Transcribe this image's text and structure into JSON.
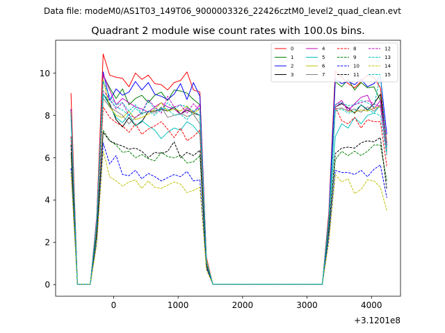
{
  "chart_data": {
    "type": "line",
    "supertitle": "Data file: modeM0/AS1T03_149T06_9000003326_22426cztM0_level2_quad_clean.evt",
    "title": "Quadrant 2 module wise count rates with 100.0s bins.",
    "xlabel": "",
    "ylabel": "",
    "offset_text": "+3.1201e8",
    "xlim": [
      -900,
      4450
    ],
    "ylim": [
      -0.55,
      11.55
    ],
    "xticks": [
      0,
      1000,
      2000,
      3000,
      4000
    ],
    "yticks": [
      0,
      2,
      4,
      6,
      8,
      10
    ],
    "grid": false,
    "legend_position": "top-right",
    "legend_columns": 4,
    "x": [
      -662,
      -562,
      -462,
      -362,
      -262,
      -162,
      -62,
      38,
      138,
      238,
      338,
      438,
      538,
      638,
      738,
      838,
      938,
      1038,
      1138,
      1238,
      1338,
      1438,
      1538,
      1638,
      1738,
      1838,
      1938,
      2038,
      2138,
      2238,
      2338,
      2438,
      2538,
      2638,
      2738,
      2838,
      2938,
      3038,
      3138,
      3238,
      3338,
      3438,
      3538,
      3638,
      3738,
      3838,
      3938,
      4038,
      4138,
      4238
    ],
    "series": [
      {
        "name": "0",
        "color": "#ff0000",
        "dashed": false,
        "values": [
          9.05,
          0.02,
          0.02,
          0.02,
          3.2,
          10.9,
          9.9,
          9.8,
          9.75,
          9.35,
          10.0,
          9.7,
          9.9,
          9.5,
          9.45,
          9.2,
          9.55,
          9.65,
          10.05,
          9.2,
          9.1,
          1.3,
          0.02,
          0.02,
          0.02,
          0.02,
          0.02,
          0.02,
          0.02,
          0.02,
          0.02,
          0.02,
          0.02,
          0.02,
          0.02,
          0.02,
          0.02,
          0.02,
          0.02,
          0.02,
          3.4,
          10.1,
          9.8,
          9.5,
          9.3,
          9.6,
          9.9,
          9.8,
          9.3,
          6.7
        ]
      },
      {
        "name": "1",
        "color": "#008000",
        "dashed": false,
        "values": [
          8.3,
          0.02,
          0.02,
          0.02,
          3.0,
          9.9,
          9.3,
          8.8,
          9.25,
          8.5,
          8.8,
          8.95,
          8.6,
          8.95,
          9.1,
          8.7,
          9.2,
          9.15,
          9.05,
          8.75,
          8.5,
          1.2,
          0.02,
          0.02,
          0.02,
          0.02,
          0.02,
          0.02,
          0.02,
          0.02,
          0.02,
          0.02,
          0.02,
          0.02,
          0.02,
          0.02,
          0.02,
          0.02,
          0.02,
          0.02,
          3.2,
          9.6,
          9.35,
          9.7,
          9.2,
          9.55,
          9.3,
          9.35,
          8.7,
          6.5
        ]
      },
      {
        "name": "2",
        "color": "#0000ff",
        "dashed": false,
        "values": [
          8.3,
          0.02,
          0.02,
          0.02,
          3.1,
          10.05,
          8.7,
          9.25,
          8.95,
          9.1,
          9.6,
          9.2,
          9.55,
          9.0,
          8.9,
          8.75,
          9.0,
          9.5,
          8.75,
          9.55,
          8.9,
          1.2,
          0.02,
          0.02,
          0.02,
          0.02,
          0.02,
          0.02,
          0.02,
          0.02,
          0.02,
          0.02,
          0.02,
          0.02,
          0.02,
          0.02,
          0.02,
          0.02,
          0.02,
          0.02,
          3.2,
          9.7,
          9.5,
          9.6,
          9.45,
          9.7,
          9.35,
          9.5,
          9.85,
          7.1
        ]
      },
      {
        "name": "3",
        "color": "#000000",
        "dashed": false,
        "values": [
          8.2,
          0.02,
          0.02,
          0.02,
          2.9,
          9.0,
          8.55,
          7.8,
          7.45,
          7.9,
          7.5,
          7.7,
          8.2,
          8.2,
          8.3,
          8.2,
          8.4,
          8.05,
          8.25,
          8.1,
          8.0,
          1.1,
          0.02,
          0.02,
          0.02,
          0.02,
          0.02,
          0.02,
          0.02,
          0.02,
          0.02,
          0.02,
          0.02,
          0.02,
          0.02,
          0.02,
          0.02,
          0.02,
          0.02,
          0.02,
          3.0,
          8.4,
          8.55,
          8.35,
          8.1,
          8.5,
          8.25,
          8.55,
          9.0,
          6.6
        ]
      },
      {
        "name": "4",
        "color": "#bf00bf",
        "dashed": false,
        "values": [
          8.3,
          0.02,
          0.02,
          0.02,
          3.0,
          9.95,
          9.2,
          8.5,
          8.8,
          8.6,
          8.4,
          8.3,
          8.15,
          8.4,
          8.6,
          8.4,
          8.3,
          8.05,
          8.35,
          8.15,
          8.5,
          1.2,
          0.02,
          0.02,
          0.02,
          0.02,
          0.02,
          0.02,
          0.02,
          0.02,
          0.02,
          0.02,
          0.02,
          0.02,
          0.02,
          0.02,
          0.02,
          0.02,
          0.02,
          0.02,
          3.1,
          8.5,
          8.7,
          8.2,
          8.55,
          8.85,
          8.95,
          8.3,
          8.7,
          6.6
        ]
      },
      {
        "name": "5",
        "color": "#00bfbf",
        "dashed": false,
        "values": [
          7.0,
          0.02,
          0.02,
          0.02,
          2.8,
          9.0,
          8.45,
          7.9,
          7.65,
          8.05,
          7.5,
          7.75,
          7.5,
          7.3,
          6.9,
          7.2,
          7.4,
          7.3,
          7.7,
          7.5,
          7.1,
          1.1,
          0.02,
          0.02,
          0.02,
          0.02,
          0.02,
          0.02,
          0.02,
          0.02,
          0.02,
          0.02,
          0.02,
          0.02,
          0.02,
          0.02,
          0.02,
          0.02,
          0.02,
          0.02,
          3.0,
          7.0,
          7.6,
          7.4,
          7.9,
          7.6,
          8.0,
          8.1,
          8.5,
          6.5
        ]
      },
      {
        "name": "6",
        "color": "#bfbf00",
        "dashed": false,
        "values": [
          8.1,
          0.02,
          0.02,
          0.02,
          3.0,
          9.7,
          8.4,
          8.0,
          7.9,
          8.2,
          7.8,
          7.9,
          8.05,
          8.3,
          8.6,
          8.2,
          8.3,
          8.2,
          8.45,
          8.1,
          8.3,
          1.2,
          0.02,
          0.02,
          0.02,
          0.02,
          0.02,
          0.02,
          0.02,
          0.02,
          0.02,
          0.02,
          0.02,
          0.02,
          0.02,
          0.02,
          0.02,
          0.02,
          0.02,
          0.02,
          3.1,
          8.3,
          8.35,
          8.2,
          8.15,
          8.25,
          8.2,
          8.35,
          8.4,
          6.4
        ]
      },
      {
        "name": "7",
        "color": "#808080",
        "dashed": false,
        "values": [
          8.2,
          0.02,
          0.02,
          0.02,
          3.0,
          8.8,
          8.4,
          8.2,
          8.0,
          7.6,
          7.9,
          8.1,
          8.2,
          8.1,
          8.4,
          7.9,
          8.0,
          8.1,
          7.95,
          8.05,
          7.6,
          1.1,
          0.02,
          0.02,
          0.02,
          0.02,
          0.02,
          0.02,
          0.02,
          0.02,
          0.02,
          0.02,
          0.02,
          0.02,
          0.02,
          0.02,
          0.02,
          0.02,
          0.02,
          0.02,
          3.0,
          8.3,
          8.35,
          8.2,
          8.3,
          8.15,
          8.4,
          8.2,
          8.5,
          6.2
        ]
      },
      {
        "name": "8",
        "color": "#ff0000",
        "dashed": true,
        "values": [
          7.0,
          0.02,
          0.02,
          0.02,
          2.6,
          8.4,
          7.9,
          7.65,
          7.5,
          7.2,
          7.6,
          7.1,
          7.35,
          7.5,
          7.7,
          7.35,
          6.95,
          7.4,
          6.8,
          7.0,
          7.3,
          1.0,
          0.02,
          0.02,
          0.02,
          0.02,
          0.02,
          0.02,
          0.02,
          0.02,
          0.02,
          0.02,
          0.02,
          0.02,
          0.02,
          0.02,
          0.02,
          0.02,
          0.02,
          0.02,
          2.8,
          8.4,
          7.75,
          7.6,
          7.9,
          7.4,
          7.8,
          7.7,
          7.7,
          5.6
        ]
      },
      {
        "name": "9",
        "color": "#008000",
        "dashed": true,
        "values": [
          6.2,
          0.02,
          0.02,
          0.02,
          2.3,
          7.3,
          6.8,
          6.6,
          6.25,
          6.3,
          6.0,
          6.15,
          5.95,
          5.85,
          6.25,
          6.05,
          6.0,
          6.1,
          5.75,
          5.8,
          6.1,
          0.9,
          0.02,
          0.02,
          0.02,
          0.02,
          0.02,
          0.02,
          0.02,
          0.02,
          0.02,
          0.02,
          0.02,
          0.02,
          0.02,
          0.02,
          0.02,
          0.02,
          0.02,
          0.02,
          2.5,
          5.9,
          6.3,
          6.1,
          6.3,
          6.1,
          6.3,
          6.6,
          6.6,
          4.9
        ]
      },
      {
        "name": "10",
        "color": "#0000ff",
        "dashed": true,
        "values": [
          5.5,
          0.02,
          0.02,
          0.02,
          2.0,
          6.7,
          5.7,
          6.1,
          5.2,
          5.15,
          5.4,
          5.0,
          5.25,
          5.1,
          4.9,
          5.05,
          5.2,
          5.1,
          5.35,
          4.9,
          4.95,
          0.8,
          0.02,
          0.02,
          0.02,
          0.02,
          0.02,
          0.02,
          0.02,
          0.02,
          0.02,
          0.02,
          0.02,
          0.02,
          0.02,
          0.02,
          0.02,
          0.02,
          0.02,
          0.02,
          2.2,
          5.4,
          5.3,
          5.3,
          5.2,
          5.4,
          5.1,
          5.45,
          5.65,
          4.1
        ]
      },
      {
        "name": "11",
        "color": "#000000",
        "dashed": true,
        "values": [
          6.6,
          0.02,
          0.02,
          0.02,
          2.4,
          7.2,
          6.8,
          6.65,
          6.55,
          6.4,
          6.45,
          6.3,
          6.0,
          6.25,
          6.2,
          6.3,
          6.75,
          6.0,
          6.25,
          6.1,
          6.35,
          0.9,
          0.02,
          0.02,
          0.02,
          0.02,
          0.02,
          0.02,
          0.02,
          0.02,
          0.02,
          0.02,
          0.02,
          0.02,
          0.02,
          0.02,
          0.02,
          0.02,
          0.02,
          0.02,
          2.6,
          6.2,
          6.45,
          6.5,
          6.45,
          6.7,
          6.8,
          6.75,
          6.95,
          4.5
        ]
      },
      {
        "name": "12",
        "color": "#bf00bf",
        "dashed": true,
        "values": [
          8.0,
          0.02,
          0.02,
          0.02,
          2.9,
          9.15,
          8.8,
          8.3,
          8.6,
          8.0,
          7.9,
          8.15,
          8.75,
          8.4,
          8.1,
          8.9,
          8.4,
          8.5,
          8.1,
          8.55,
          8.2,
          1.1,
          0.02,
          0.02,
          0.02,
          0.02,
          0.02,
          0.02,
          0.02,
          0.02,
          0.02,
          0.02,
          0.02,
          0.02,
          0.02,
          0.02,
          0.02,
          0.02,
          0.02,
          0.02,
          3.0,
          8.4,
          8.6,
          8.3,
          8.5,
          8.6,
          8.7,
          8.55,
          8.4,
          6.3
        ]
      },
      {
        "name": "13",
        "color": "#00bfbf",
        "dashed": true,
        "values": [
          7.8,
          0.02,
          0.02,
          0.02,
          2.8,
          9.0,
          8.7,
          8.4,
          8.25,
          8.0,
          8.35,
          8.05,
          8.2,
          8.0,
          8.35,
          8.3,
          8.0,
          8.05,
          7.8,
          8.2,
          8.0,
          1.1,
          0.02,
          0.02,
          0.02,
          0.02,
          0.02,
          0.02,
          0.02,
          0.02,
          0.02,
          0.02,
          0.02,
          0.02,
          0.02,
          0.02,
          0.02,
          0.02,
          0.02,
          0.02,
          2.9,
          8.2,
          8.3,
          8.1,
          8.2,
          8.5,
          8.3,
          8.1,
          8.0,
          6.1
        ]
      },
      {
        "name": "14",
        "color": "#bfbf00",
        "dashed": true,
        "values": [
          5.3,
          0.02,
          0.02,
          0.02,
          1.9,
          6.3,
          5.1,
          4.9,
          4.65,
          4.85,
          4.95,
          4.55,
          4.9,
          4.6,
          4.55,
          4.7,
          4.85,
          4.75,
          4.35,
          4.45,
          4.6,
          0.7,
          0.02,
          0.02,
          0.02,
          0.02,
          0.02,
          0.02,
          0.02,
          0.02,
          0.02,
          0.02,
          0.02,
          0.02,
          0.02,
          0.02,
          0.02,
          0.02,
          0.02,
          0.02,
          2.0,
          5.2,
          4.85,
          5.0,
          4.3,
          4.5,
          4.95,
          4.9,
          4.6,
          3.5
        ]
      },
      {
        "name": "15",
        "color": "#00bfbf",
        "dashed": true,
        "values": [
          8.0,
          0.02,
          0.02,
          0.02,
          2.9,
          9.6,
          8.9,
          8.5,
          8.6,
          8.2,
          8.5,
          8.1,
          8.7,
          8.3,
          8.2,
          8.6,
          8.3,
          8.5,
          8.4,
          8.2,
          8.35,
          1.1,
          0.02,
          0.02,
          0.02,
          0.02,
          0.02,
          0.02,
          0.02,
          0.02,
          0.02,
          0.02,
          0.02,
          0.02,
          0.02,
          0.02,
          0.02,
          0.02,
          0.02,
          0.02,
          3.0,
          8.5,
          8.6,
          8.45,
          8.5,
          8.7,
          8.6,
          8.4,
          9.9,
          6.3
        ]
      }
    ]
  }
}
